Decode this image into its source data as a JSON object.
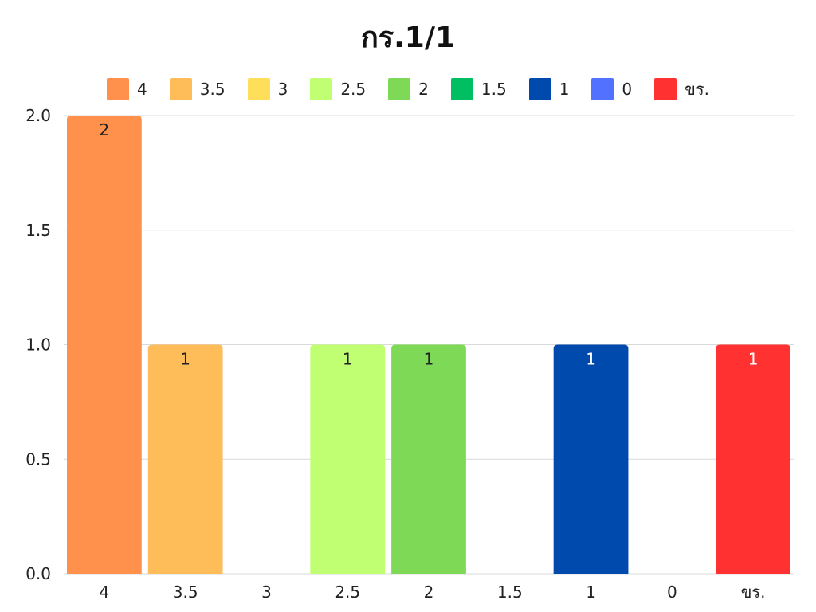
{
  "chart_data": {
    "type": "bar",
    "title": "กร.1/1",
    "categories": [
      "4",
      "3.5",
      "3",
      "2.5",
      "2",
      "1.5",
      "1",
      "0",
      "ขร."
    ],
    "values": [
      2,
      1,
      0,
      1,
      1,
      0,
      1,
      0,
      1
    ],
    "data_labels": [
      "2",
      "1",
      "",
      "1",
      "1",
      "",
      "1",
      "",
      "1"
    ],
    "colors": [
      "#FF914D",
      "#FFBD59",
      "#FFDE59",
      "#C1FF72",
      "#7ED957",
      "#00BF63",
      "#004AAD",
      "#5271FF",
      "#FF3131"
    ],
    "label_colors": [
      "#222222",
      "#222222",
      "#222222",
      "#222222",
      "#222222",
      "#222222",
      "#ffffff",
      "#ffffff",
      "#ffffff"
    ],
    "legend": [
      "4",
      "3.5",
      "3",
      "2.5",
      "2",
      "1.5",
      "1",
      "0",
      "ขร."
    ],
    "y_ticks": [
      "0.0",
      "0.5",
      "1.0",
      "1.5",
      "2.0"
    ],
    "ylim": [
      0,
      2
    ],
    "xlabel": "",
    "ylabel": "",
    "grid": true,
    "legend_position": "top"
  }
}
